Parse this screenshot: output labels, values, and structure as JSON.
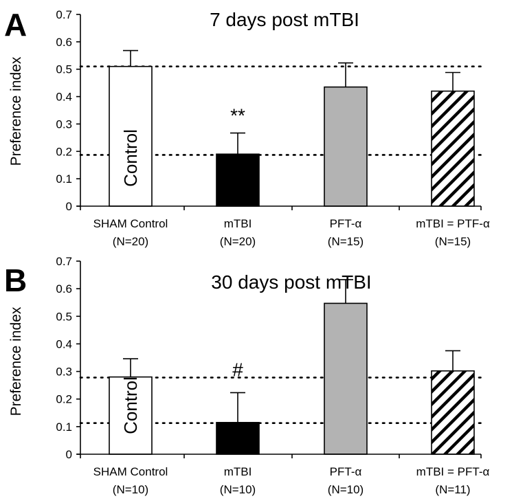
{
  "chart_data": [
    {
      "type": "bar",
      "panel": "A",
      "title": "7 days post mTBI",
      "ylabel": "Preference index",
      "ylim": [
        0,
        0.7
      ],
      "yticks": [
        "0",
        "0.1",
        "0.2",
        "0.3",
        "0.4",
        "0.5",
        "0.6",
        "0.7"
      ],
      "categories": [
        "SHAM Control",
        "mTBI",
        "PFT-α",
        "mTBI = PTF-α"
      ],
      "category_n": [
        "(N=20)",
        "(N=20)",
        "(N=15)",
        "(N=15)"
      ],
      "values": [
        0.51,
        0.19,
        0.435,
        0.42
      ],
      "errors": [
        0.058,
        0.077,
        0.088,
        0.068
      ],
      "fills": [
        "white",
        "black",
        "gray",
        "hatched"
      ],
      "significance": [
        null,
        "**",
        null,
        null
      ],
      "bar_labels": [
        "Control",
        null,
        null,
        null
      ],
      "reference_lines": [
        0.51,
        0.187
      ]
    },
    {
      "type": "bar",
      "panel": "B",
      "title": "30 days post mTBI",
      "ylabel": "Preference index",
      "ylim": [
        0,
        0.7
      ],
      "yticks": [
        "0",
        "0.1",
        "0.2",
        "0.3",
        "0.4",
        "0.5",
        "0.6",
        "0.7"
      ],
      "categories": [
        "SHAM Control",
        "mTBI",
        "PFT-α",
        "mTBI = PFT-α"
      ],
      "category_n": [
        "(N=10)",
        "(N=10)",
        "(N=10)",
        "(N=11)"
      ],
      "values": [
        0.28,
        0.115,
        0.547,
        0.302
      ],
      "errors": [
        0.066,
        0.108,
        0.086,
        0.073
      ],
      "fills": [
        "white",
        "black",
        "gray",
        "hatched"
      ],
      "significance": [
        null,
        "#",
        null,
        null
      ],
      "bar_labels": [
        "Control",
        null,
        null,
        null
      ],
      "reference_lines": [
        0.278,
        0.113
      ]
    }
  ],
  "colors": {
    "white": "#ffffff",
    "black": "#000000",
    "gray": "#b3b3b3",
    "outline": "#000000"
  }
}
